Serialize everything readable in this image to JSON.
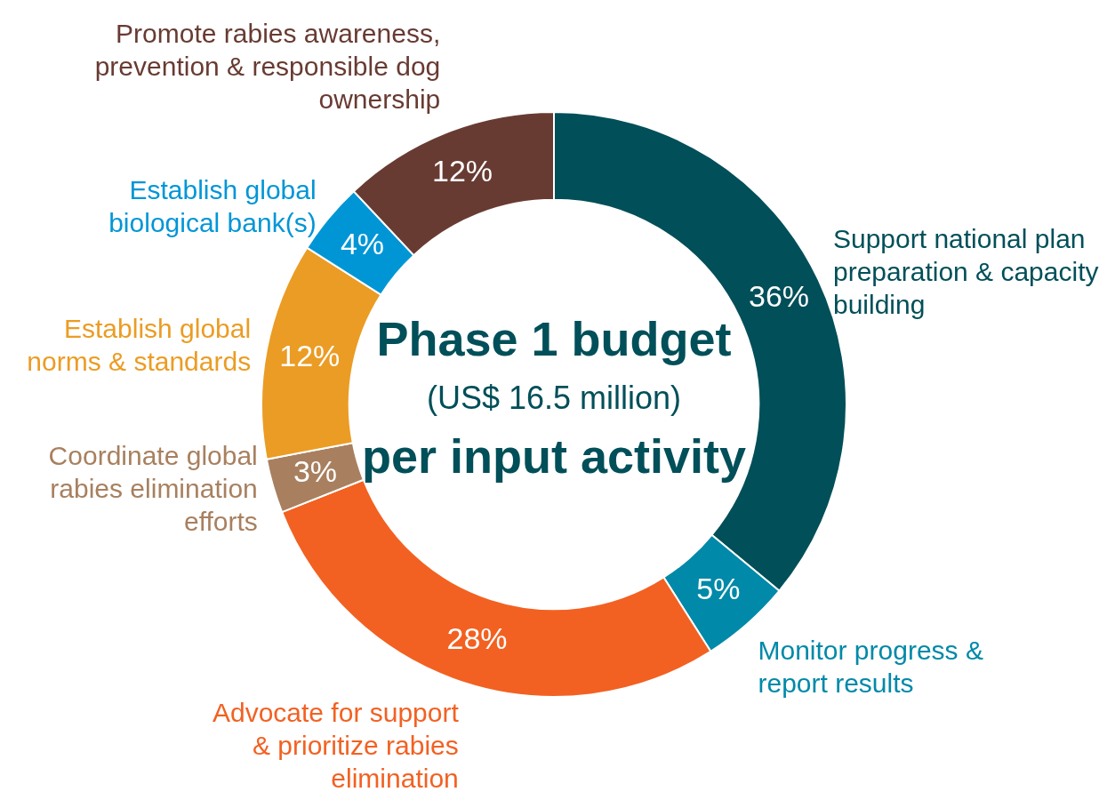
{
  "chart_data": {
    "type": "donut",
    "title": "Phase 1 budget",
    "subtitle": "(US$ 16.5 million)",
    "annotations": [
      "per input activity"
    ],
    "categories": [
      "Support national plan preparation & capacity building",
      "Monitor progress & report results",
      "Advocate for support & prioritize rabies elimination",
      "Coordinate global rabies elimination efforts",
      "Establish global norms & standards",
      "Establish global biological bank(s)",
      "Promote rabies awareness, prevention & responsible dog ownership"
    ],
    "values": [
      36,
      5,
      28,
      3,
      12,
      4,
      12
    ],
    "value_labels": [
      "36%",
      "5%",
      "28%",
      "3%",
      "12%",
      "4%",
      "12%"
    ],
    "colors": [
      "#004f59",
      "#0089a8",
      "#f26122",
      "#a8805f",
      "#eb9c24",
      "#0096d6",
      "#683b32"
    ],
    "legend": false
  }
}
